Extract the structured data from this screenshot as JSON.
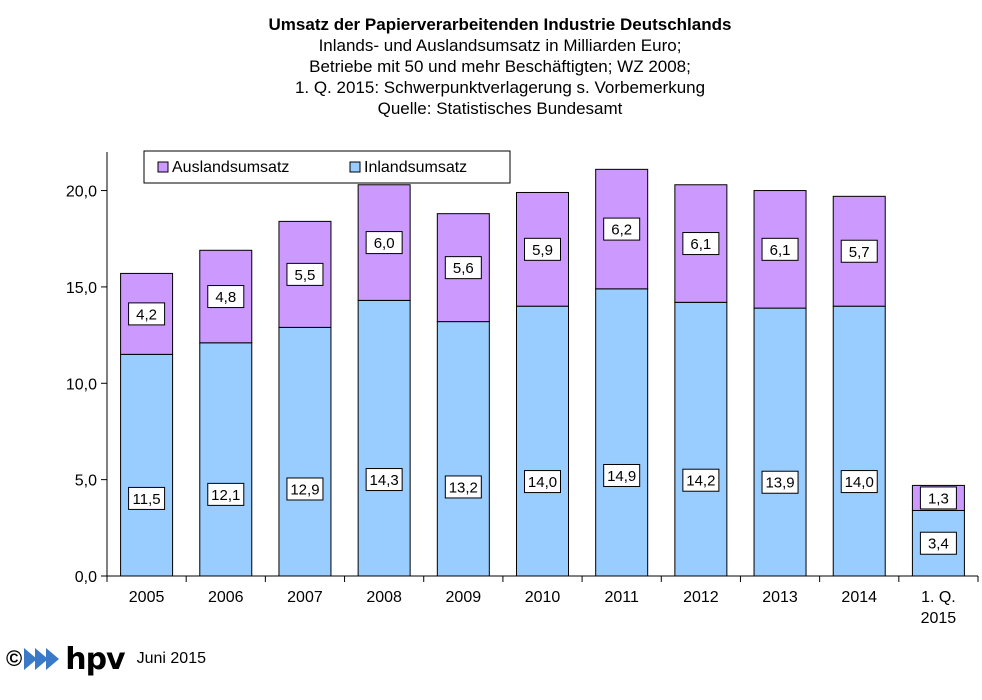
{
  "chart_data": {
    "type": "bar",
    "stacked": true,
    "title": "Umsatz der Papierverarbeitenden Industrie Deutschlands",
    "subtitle_lines": [
      "Inlands- und Auslandsumsatz in Milliarden Euro;",
      "Betriebe mit 50 und mehr Beschäftigten; WZ 2008;",
      "1. Q. 2015: Schwerpunktverlagerung s. Vorbemerkung",
      "Quelle: Statistisches Bundesamt"
    ],
    "categories": [
      "2005",
      "2006",
      "2007",
      "2008",
      "2009",
      "2010",
      "2011",
      "2012",
      "2013",
      "2014",
      "1. Q. 2015"
    ],
    "series": [
      {
        "name": "Inlandsumsatz",
        "color": "#99ccff",
        "values": [
          11.5,
          12.1,
          12.9,
          14.3,
          13.2,
          14.0,
          14.9,
          14.2,
          13.9,
          14.0,
          3.4
        ],
        "labels": [
          "11,5",
          "12,1",
          "12,9",
          "14,3",
          "13,2",
          "14,0",
          "14,9",
          "14,2",
          "13,9",
          "14,0",
          "3,4"
        ]
      },
      {
        "name": "Auslandsumsatz",
        "color": "#cc99ff",
        "values": [
          4.2,
          4.8,
          5.5,
          6.0,
          5.6,
          5.9,
          6.2,
          6.1,
          6.1,
          5.7,
          1.3
        ],
        "labels": [
          "4,2",
          "4,8",
          "5,5",
          "6,0",
          "5,6",
          "5,9",
          "6,2",
          "6,1",
          "6,1",
          "5,7",
          "1,3"
        ]
      }
    ],
    "legend_order": [
      "Auslandsumsatz",
      "Inlandsumsatz"
    ],
    "legend_position": "top-left",
    "ylim": [
      0,
      22
    ],
    "yticks": [
      0,
      5,
      10,
      15,
      20
    ],
    "ytick_labels": [
      "0,0",
      "5,0",
      "10,0",
      "15,0",
      "20,0"
    ],
    "xlabel": "",
    "ylabel": "",
    "grid": false
  },
  "footer": {
    "copyright_symbol": "©",
    "brand": "hpv",
    "date": "Juni 2015",
    "brand_color": "#3a78c8"
  }
}
